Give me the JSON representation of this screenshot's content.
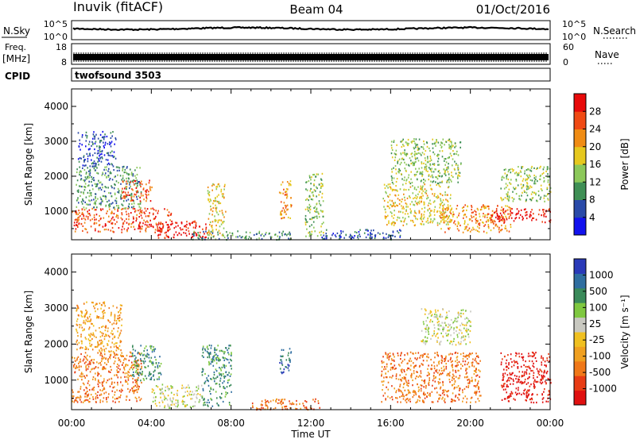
{
  "header": {
    "station": "Inuvik (fitACF)",
    "beam": "Beam 04",
    "date": "01/Oct/2016"
  },
  "strips": {
    "noise": {
      "left_label": "N.Sky",
      "left_ticks": [
        "10^5",
        "10^0"
      ],
      "right_label": "N.Search",
      "right_ticks": [
        "10^5",
        "10^0"
      ]
    },
    "freq": {
      "left_label_top": "Freq.",
      "left_label_unit": "[MHz]",
      "left_ticks": [
        "18",
        "8"
      ],
      "right_label": "Nave",
      "right_ticks": [
        "60",
        "0"
      ]
    },
    "cpid": {
      "label": "CPID",
      "value": "twofsound 3503"
    }
  },
  "x_axis": {
    "title": "Time UT",
    "ticks": [
      "00:00",
      "04:00",
      "08:00",
      "12:00",
      "16:00",
      "20:00",
      "00:00"
    ]
  },
  "chart_data": [
    {
      "type": "heatmap",
      "title": "Power",
      "xlabel": "Time UT",
      "ylabel": "Slant Range [km]",
      "x_range_hours": [
        0,
        24
      ],
      "ylim": [
        180,
        4500
      ],
      "y_ticks": [
        "1000",
        "2000",
        "3000",
        "4000"
      ],
      "colorbar": {
        "label": "Power [dB]",
        "ticks": [
          "4",
          "8",
          "12",
          "16",
          "20",
          "24",
          "28"
        ],
        "range": [
          0,
          30
        ],
        "colors": [
          "#1212ee",
          "#2a4aa8",
          "#3f8f55",
          "#8cc85a",
          "#e6c81e",
          "#f08c14",
          "#f04a14",
          "#e80a0a"
        ]
      },
      "regions": [
        {
          "t0": 0.0,
          "t1": 5.0,
          "r0": 400,
          "r1": 1100,
          "level": 24
        },
        {
          "t0": 0.2,
          "t1": 3.5,
          "r0": 1100,
          "r1": 2300,
          "level": 11
        },
        {
          "t0": 0.3,
          "t1": 2.2,
          "r0": 2300,
          "r1": 3300,
          "level": 7
        },
        {
          "t0": 2.5,
          "t1": 4.0,
          "r0": 1300,
          "r1": 1900,
          "level": 24
        },
        {
          "t0": 4.3,
          "t1": 6.8,
          "r0": 250,
          "r1": 750,
          "level": 27
        },
        {
          "t0": 6.8,
          "t1": 7.7,
          "r0": 300,
          "r1": 1800,
          "level": 15
        },
        {
          "t0": 6.0,
          "t1": 11.0,
          "r0": 200,
          "r1": 450,
          "level": 10
        },
        {
          "t0": 10.4,
          "t1": 11.0,
          "r0": 800,
          "r1": 1900,
          "level": 20
        },
        {
          "t0": 11.7,
          "t1": 12.6,
          "r0": 300,
          "r1": 2100,
          "level": 14
        },
        {
          "t0": 12.5,
          "t1": 16.5,
          "r0": 200,
          "r1": 500,
          "level": 7
        },
        {
          "t0": 15.6,
          "t1": 19.0,
          "r0": 600,
          "r1": 1800,
          "level": 18
        },
        {
          "t0": 16.0,
          "t1": 19.5,
          "r0": 1800,
          "r1": 3100,
          "level": 12
        },
        {
          "t0": 18.5,
          "t1": 22.0,
          "r0": 400,
          "r1": 1200,
          "level": 22
        },
        {
          "t0": 21.0,
          "t1": 24.0,
          "r0": 700,
          "r1": 1100,
          "level": 27
        },
        {
          "t0": 21.5,
          "t1": 24.0,
          "r0": 1300,
          "r1": 2300,
          "level": 13
        }
      ]
    },
    {
      "type": "heatmap",
      "title": "Velocity",
      "xlabel": "Time UT",
      "ylabel": "Slant Range [km]",
      "x_range_hours": [
        0,
        24
      ],
      "ylim": [
        180,
        4500
      ],
      "y_ticks": [
        "1000",
        "2000",
        "3000",
        "4000"
      ],
      "colorbar": {
        "label": "Velocity [m s⁻¹]",
        "ticks": [
          "1000",
          "500",
          "100",
          "25",
          "-25",
          "-100",
          "-500",
          "-1000"
        ],
        "colors": [
          "#2a3ab8",
          "#2f6ea0",
          "#3a8a5a",
          "#7fc840",
          "#c8c8c0",
          "#f0c020",
          "#f0a020",
          "#f07818",
          "#e83c14",
          "#e01010"
        ]
      },
      "regions": [
        {
          "t0": 0.0,
          "t1": 3.5,
          "r0": 400,
          "r1": 1800,
          "level": -300
        },
        {
          "t0": 0.2,
          "t1": 2.5,
          "r0": 1800,
          "r1": 3200,
          "level": -40
        },
        {
          "t0": 3.0,
          "t1": 4.5,
          "r0": 1000,
          "r1": 2000,
          "level": 200
        },
        {
          "t0": 4.0,
          "t1": 6.5,
          "r0": 250,
          "r1": 900,
          "level": 0
        },
        {
          "t0": 6.5,
          "t1": 8.0,
          "r0": 300,
          "r1": 2000,
          "level": 150
        },
        {
          "t0": 9.0,
          "t1": 12.5,
          "r0": 200,
          "r1": 500,
          "level": -120
        },
        {
          "t0": 10.4,
          "t1": 11.0,
          "r0": 1200,
          "r1": 1900,
          "level": 600
        },
        {
          "t0": 15.5,
          "t1": 20.5,
          "r0": 400,
          "r1": 1800,
          "level": -400
        },
        {
          "t0": 17.5,
          "t1": 20.0,
          "r0": 2000,
          "r1": 3000,
          "level": 0
        },
        {
          "t0": 21.5,
          "t1": 24.0,
          "r0": 400,
          "r1": 1800,
          "level": -700
        }
      ]
    }
  ]
}
